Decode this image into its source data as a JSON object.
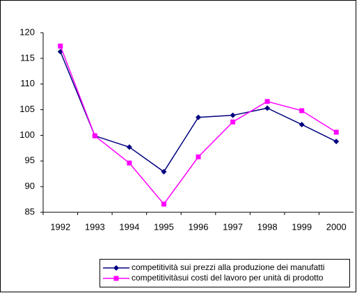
{
  "chart_data": {
    "type": "line",
    "categories": [
      "1992",
      "1993",
      "1994",
      "1995",
      "1996",
      "1997",
      "1998",
      "1999",
      "2000"
    ],
    "series": [
      {
        "name": "competitività sui prezzi alla produzione dei manufatti",
        "color": "#000080",
        "marker": "diamond",
        "values": [
          116.3,
          99.9,
          97.7,
          92.9,
          103.5,
          103.9,
          105.3,
          102.1,
          98.8
        ]
      },
      {
        "name": "competitivitàsui costi del lavoro per unità di prodotto",
        "color": "#ff00ff",
        "marker": "square",
        "values": [
          117.4,
          99.9,
          94.6,
          86.6,
          95.8,
          102.6,
          106.6,
          104.8,
          100.6
        ]
      }
    ],
    "ylim": [
      85,
      120
    ],
    "yticks": [
      85,
      90,
      95,
      100,
      105,
      110,
      115,
      120
    ],
    "grid": false,
    "legend": "bottom"
  }
}
